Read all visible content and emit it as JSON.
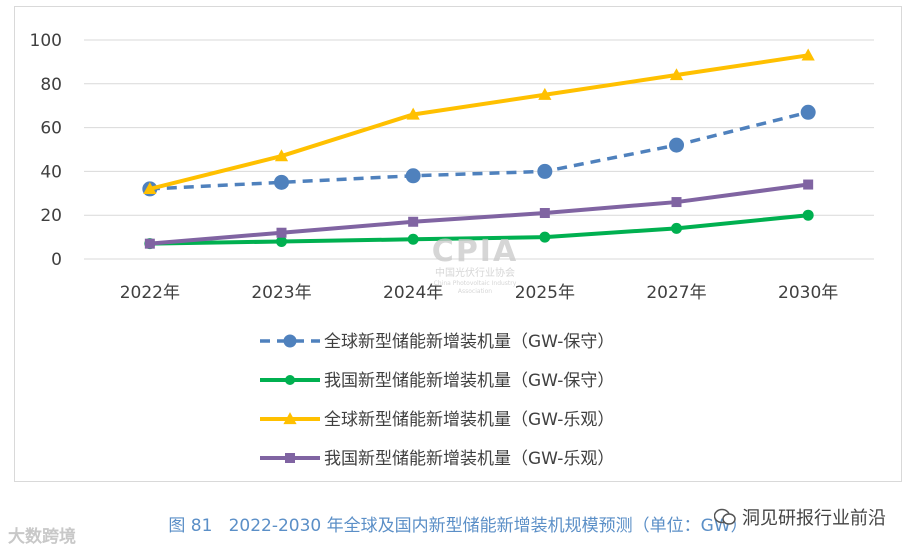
{
  "chart_data": {
    "type": "line",
    "categories": [
      "2022年",
      "2023年",
      "2024年",
      "2025年",
      "2027年",
      "2030年"
    ],
    "ylim": [
      0,
      100
    ],
    "yticks": [
      0,
      20,
      40,
      60,
      80,
      100
    ],
    "series": [
      {
        "name": "全球新型储能新增装机量（GW-保守）",
        "values": [
          32,
          35,
          38,
          40,
          52,
          67
        ],
        "color": "#4f81bd",
        "marker": "circle",
        "dashed": true
      },
      {
        "name": "我国新型储能新增装机量（GW-保守）",
        "values": [
          7,
          8,
          9,
          10,
          14,
          20
        ],
        "color": "#00b050",
        "marker": "circle",
        "dashed": false
      },
      {
        "name": "全球新型储能新增装机量（GW-乐观）",
        "values": [
          32,
          47,
          66,
          75,
          84,
          93
        ],
        "color": "#ffc000",
        "marker": "triangle",
        "dashed": false
      },
      {
        "name": "我国新型储能新增装机量（GW-乐观）",
        "values": [
          7,
          12,
          17,
          21,
          26,
          34
        ],
        "color": "#8064a2",
        "marker": "square",
        "dashed": false
      }
    ],
    "legend_position": "bottom",
    "grid": true
  },
  "caption": "图 81   2022-2030 年全球及国内新型储能新增装机规模预测（单位：GW）",
  "source": "洞见研报行业前沿",
  "watermark": {
    "logo": "CPIA",
    "org_cn": "中国光伏行业协会",
    "org_en": "China Photovoltaic Industry Association"
  },
  "bottom_mark": "大数跨境"
}
